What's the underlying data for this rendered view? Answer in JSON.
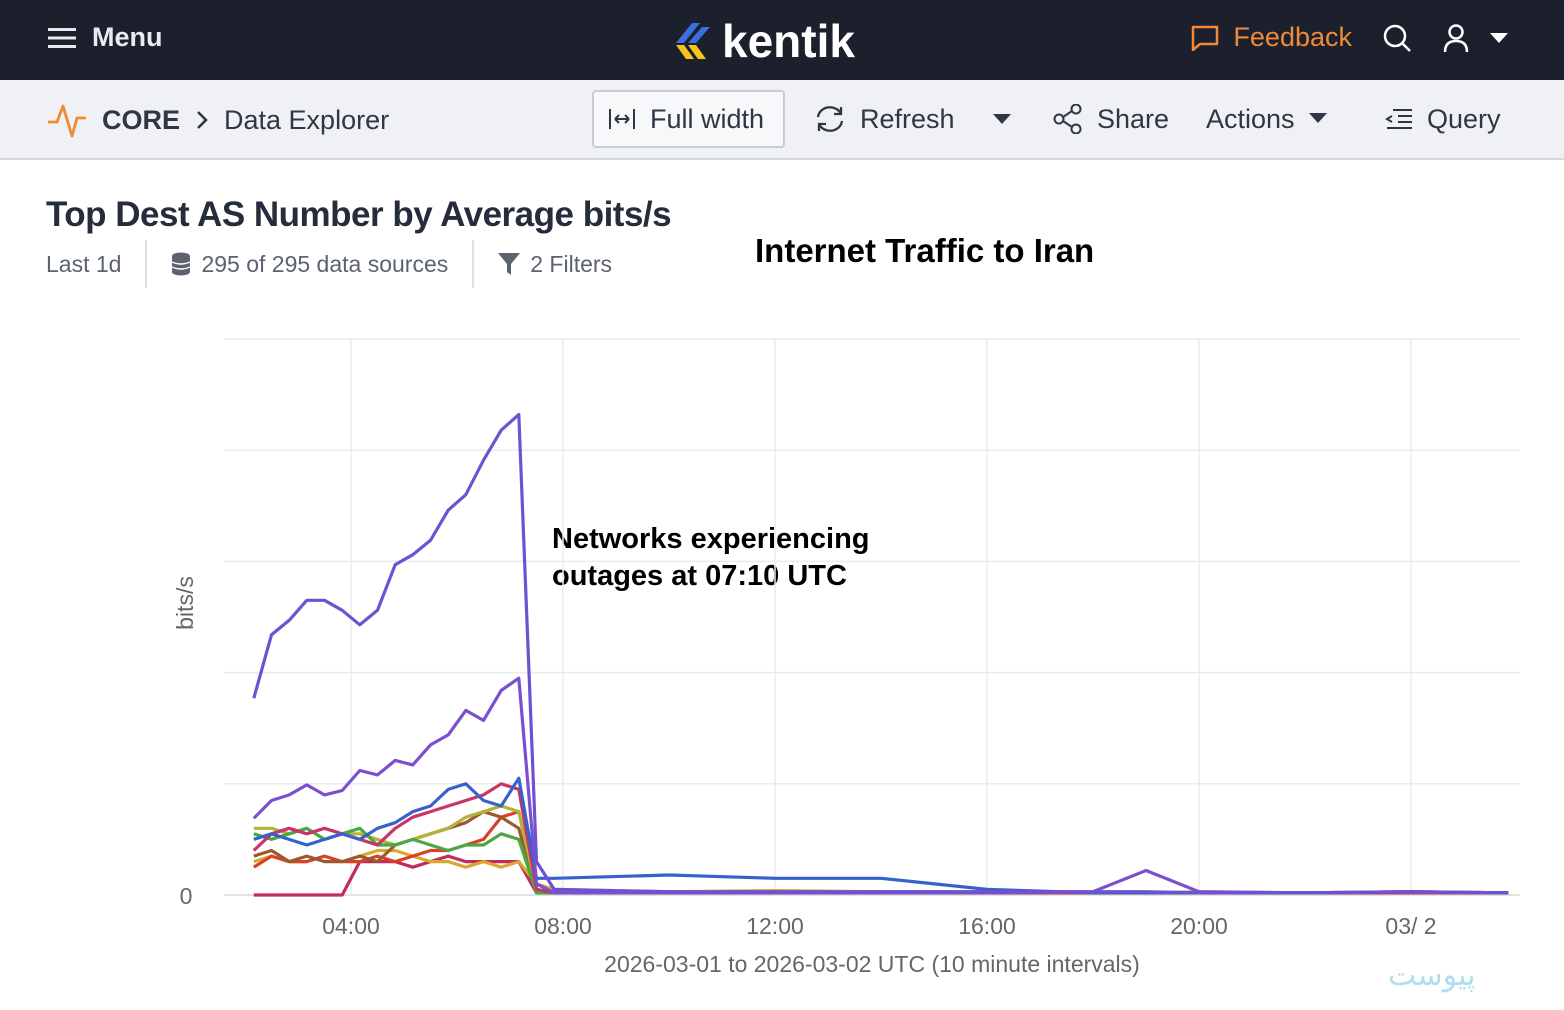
{
  "header": {
    "menu_label": "Menu",
    "logo_text": "kentik",
    "feedback_label": "Feedback",
    "icons": [
      "menu-icon",
      "search-icon",
      "user-icon",
      "chevron-down-icon",
      "feedback-icon"
    ]
  },
  "toolbar": {
    "breadcrumb_root": "CORE",
    "breadcrumb_page": "Data Explorer",
    "full_width": "Full width",
    "refresh": "Refresh",
    "share": "Share",
    "actions": "Actions",
    "query": "Query"
  },
  "query": {
    "title": "Top Dest AS Number by Average bits/s",
    "time_range": "Last 1d",
    "data_sources": "295 of 295 data sources",
    "filters": "2 Filters"
  },
  "annotations": {
    "title": "Internet Traffic to Iran",
    "outage_line1": "Networks experiencing",
    "outage_line2": "outages at 07:10 UTC"
  },
  "watermark": "پیوست",
  "chart_data": {
    "type": "line",
    "xlabel": "2026-03-01 to 2026-03-02 UTC (10 minute intervals)",
    "ylabel": "bits/s",
    "y_tick_labels": [
      "0"
    ],
    "x_tick_labels": [
      {
        "t": "2026-03-01T04:00",
        "label": "04:00"
      },
      {
        "t": "2026-03-01T08:00",
        "label": "08:00"
      },
      {
        "t": "2026-03-01T12:00",
        "label": "12:00"
      },
      {
        "t": "2026-03-01T16:00",
        "label": "16:00"
      },
      {
        "t": "2026-03-01T20:00",
        "label": "20:00"
      },
      {
        "t": "2026-03-02T00:00",
        "label": "03/ 2"
      }
    ],
    "ylim": [
      0,
      5
    ],
    "grid": true,
    "legend": "none",
    "x": [
      "2026-03-01T02:10",
      "2026-03-01T02:30",
      "2026-03-01T02:50",
      "2026-03-01T03:10",
      "2026-03-01T03:30",
      "2026-03-01T03:50",
      "2026-03-01T04:10",
      "2026-03-01T04:30",
      "2026-03-01T04:50",
      "2026-03-01T05:10",
      "2026-03-01T05:30",
      "2026-03-01T05:50",
      "2026-03-01T06:10",
      "2026-03-01T06:30",
      "2026-03-01T06:50",
      "2026-03-01T07:10",
      "2026-03-01T07:30",
      "2026-03-01T07:50",
      "2026-03-01T10:00",
      "2026-03-01T12:00",
      "2026-03-01T14:00",
      "2026-03-01T16:00",
      "2026-03-01T18:00",
      "2026-03-01T19:00",
      "2026-03-01T20:00",
      "2026-03-01T22:00",
      "2026-03-02T00:00",
      "2026-03-02T01:50"
    ],
    "series": [
      {
        "color": "#6f52d4",
        "values": [
          1.77,
          2.34,
          2.47,
          2.65,
          2.65,
          2.56,
          2.43,
          2.56,
          2.97,
          3.06,
          3.19,
          3.46,
          3.6,
          3.91,
          4.18,
          4.32,
          0.3,
          0.05,
          0.03,
          0.03,
          0.03,
          0.03,
          0.03,
          0.03,
          0.02,
          0.02,
          0.03,
          0.02
        ]
      },
      {
        "color": "#7a4fd0",
        "values": [
          0.69,
          0.85,
          0.9,
          0.99,
          0.9,
          0.94,
          1.12,
          1.08,
          1.21,
          1.17,
          1.35,
          1.44,
          1.66,
          1.57,
          1.84,
          1.95,
          0.1,
          0.02,
          0.02,
          0.02,
          0.02,
          0.02,
          0.03,
          0.22,
          0.03,
          0.02,
          0.03,
          0.02
        ]
      },
      {
        "color": "#3563c9",
        "values": [
          0.5,
          0.55,
          0.5,
          0.45,
          0.5,
          0.55,
          0.5,
          0.6,
          0.65,
          0.75,
          0.8,
          0.95,
          1.0,
          0.85,
          0.8,
          1.05,
          0.15,
          0.15,
          0.18,
          0.15,
          0.15,
          0.05,
          0.02,
          0.02,
          0.02,
          0.02,
          0.03,
          0.02
        ]
      },
      {
        "color": "#c8336a",
        "values": [
          0.4,
          0.55,
          0.6,
          0.55,
          0.6,
          0.55,
          0.5,
          0.45,
          0.6,
          0.7,
          0.75,
          0.8,
          0.85,
          0.9,
          1.0,
          0.95,
          0.05,
          0.02,
          0.02,
          0.02,
          0.02,
          0.02,
          0.02,
          0.02,
          0.02,
          0.02,
          0.02,
          0.02
        ]
      },
      {
        "color": "#4aa844",
        "values": [
          0.55,
          0.5,
          0.55,
          0.6,
          0.5,
          0.55,
          0.6,
          0.45,
          0.45,
          0.5,
          0.45,
          0.4,
          0.45,
          0.45,
          0.55,
          0.5,
          0.02,
          0.02,
          0.02,
          0.02,
          0.02,
          0.02,
          0.02,
          0.02,
          0.02,
          0.02,
          0.02,
          0.02
        ]
      },
      {
        "color": "#b5b23a",
        "values": [
          0.6,
          0.6,
          0.55,
          0.6,
          0.5,
          0.55,
          0.55,
          0.5,
          0.45,
          0.5,
          0.55,
          0.6,
          0.7,
          0.75,
          0.8,
          0.75,
          0.05,
          0.02,
          0.02,
          0.02,
          0.02,
          0.02,
          0.02,
          0.02,
          0.02,
          0.02,
          0.02,
          0.02
        ]
      },
      {
        "color": "#9a5a2c",
        "values": [
          0.35,
          0.4,
          0.3,
          0.35,
          0.3,
          0.3,
          0.35,
          0.3,
          0.45,
          0.5,
          0.55,
          0.6,
          0.65,
          0.75,
          0.7,
          0.6,
          0.02,
          0.02,
          0.02,
          0.02,
          0.02,
          0.02,
          0.02,
          0.02,
          0.02,
          0.02,
          0.02,
          0.02
        ]
      },
      {
        "color": "#d8402a",
        "values": [
          0.25,
          0.35,
          0.3,
          0.3,
          0.35,
          0.3,
          0.3,
          0.35,
          0.3,
          0.35,
          0.4,
          0.4,
          0.45,
          0.5,
          0.7,
          0.75,
          0.05,
          0.02,
          0.02,
          0.02,
          0.02,
          0.02,
          0.02,
          0.02,
          0.02,
          0.02,
          0.02,
          0.02
        ]
      },
      {
        "color": "#d9a82e",
        "values": [
          0.3,
          0.35,
          0.3,
          0.3,
          0.35,
          0.3,
          0.35,
          0.4,
          0.4,
          0.35,
          0.3,
          0.3,
          0.25,
          0.3,
          0.25,
          0.3,
          0.1,
          0.05,
          0.03,
          0.04,
          0.03,
          0.03,
          0.02,
          0.02,
          0.03,
          0.02,
          0.02,
          0.02
        ]
      },
      {
        "color": "#c02a5c",
        "values": [
          0,
          0,
          0,
          0,
          0,
          0,
          0.3,
          0.3,
          0.3,
          0.25,
          0.3,
          0.35,
          0.3,
          0.3,
          0.3,
          0.3,
          0.02,
          0.02,
          0.02,
          0.02,
          0.02,
          0.02,
          0.02,
          0.02,
          0.02,
          0.02,
          0.02,
          0.02
        ]
      }
    ]
  }
}
